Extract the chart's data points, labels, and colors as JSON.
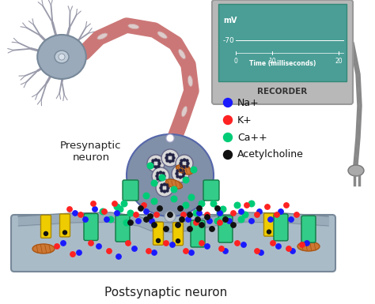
{
  "background_color": "#ffffff",
  "recorder_bg": "#4a9e96",
  "recorder_border": "#a8a8a8",
  "recorder_label": "RECORDER",
  "recorder_mv": "mV",
  "recorder_mv_value": "-70",
  "recorder_x_ticks": [
    "0",
    "10",
    "20"
  ],
  "recorder_xlabel": "Time (milliseconds)",
  "legend_items": [
    {
      "label": "Na+",
      "color": "#1a1aff"
    },
    {
      "label": "K+",
      "color": "#ff2222"
    },
    {
      "label": "Ca++",
      "color": "#00cc77"
    },
    {
      "label": "Acetylcholine",
      "color": "#111111"
    }
  ],
  "presynaptic_label": "Presynaptic\nneuron",
  "postsynaptic_label": "Postsynaptic neuron",
  "neuron_body_color": "#9aaabb",
  "neuron_border_color": "#778899",
  "nucleus_color": "#c0ccd8",
  "dendrite_color": "#999aaa",
  "axon_color": "#cc7777",
  "axon_node_color": "#ddbbbb",
  "terminal_color": "#8090a8",
  "terminal_border": "#5566aa",
  "vesicle_color": "#d8d8d8",
  "vesicle_border": "#666688",
  "mito_color": "#cc7733",
  "mito_border": "#aa5511",
  "postsynaptic_surface_color": "#9aabba",
  "postsynaptic_body_color": "#aabbc8",
  "postsynaptic_border": "#778899",
  "channel_green": "#33cc88",
  "channel_yellow": "#eecc00",
  "channel_border_green": "#117744",
  "channel_border_yellow": "#aa8800",
  "ca_color": "#00cc77",
  "na_color": "#1a1aff",
  "k_color": "#ff2222",
  "ach_color": "#111111",
  "wire_color": "#888888",
  "electrode_color": "#aaaaaa"
}
